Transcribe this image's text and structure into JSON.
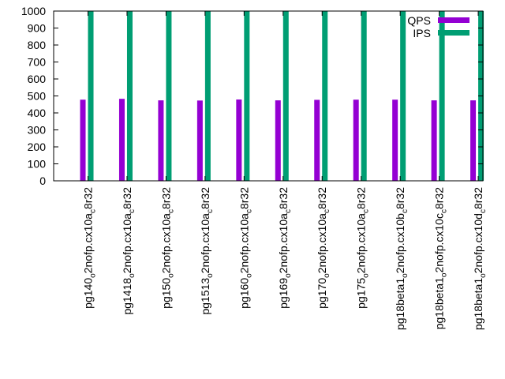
{
  "chart_data": {
    "type": "bar",
    "title": "",
    "xlabel": "",
    "ylabel": "",
    "ylim": [
      0,
      1000
    ],
    "yticks": [
      0,
      100,
      200,
      300,
      400,
      500,
      600,
      700,
      800,
      900,
      1000
    ],
    "grid": false,
    "legend_position": "top-right",
    "categories": [
      {
        "base": "pg140",
        "sub1": "o",
        "mid": "2nofp.cx10a",
        "sub2": "c",
        "tail": "8r32"
      },
      {
        "base": "pg1418",
        "sub1": "o",
        "mid": "2nofp.cx10a",
        "sub2": "c",
        "tail": "8r32"
      },
      {
        "base": "pg150",
        "sub1": "o",
        "mid": "2nofp.cx10a",
        "sub2": "c",
        "tail": "8r32"
      },
      {
        "base": "pg1513",
        "sub1": "o",
        "mid": "2nofp.cx10a",
        "sub2": "c",
        "tail": "8r32"
      },
      {
        "base": "pg160",
        "sub1": "o",
        "mid": "2nofp.cx10a",
        "sub2": "c",
        "tail": "8r32"
      },
      {
        "base": "pg169",
        "sub1": "o",
        "mid": "2nofp.cx10a",
        "sub2": "c",
        "tail": "8r32"
      },
      {
        "base": "pg170",
        "sub1": "o",
        "mid": "2nofp.cx10a",
        "sub2": "c",
        "tail": "8r32"
      },
      {
        "base": "pg175",
        "sub1": "o",
        "mid": "2nofp.cx10a",
        "sub2": "c",
        "tail": "8r32"
      },
      {
        "base": "pg18beta1",
        "sub1": "o",
        "mid": "2nofp.cx10b",
        "sub2": "c",
        "tail": "8r32"
      },
      {
        "base": "pg18beta1",
        "sub1": "o",
        "mid": "2nofp.cx10c",
        "sub2": "c",
        "tail": "8r32"
      },
      {
        "base": "pg18beta1",
        "sub1": "o",
        "mid": "2nofp.cx10d",
        "sub2": "c",
        "tail": "8r32"
      }
    ],
    "series": [
      {
        "name": "QPS",
        "color": "#9400d3",
        "values": [
          478,
          483,
          474,
          473,
          479,
          474,
          477,
          478,
          478,
          474,
          474
        ]
      },
      {
        "name": "IPS",
        "color": "#009e73",
        "values": [
          1000,
          1000,
          1000,
          1000,
          1000,
          1000,
          1000,
          1000,
          1000,
          1000,
          1000
        ]
      }
    ]
  }
}
